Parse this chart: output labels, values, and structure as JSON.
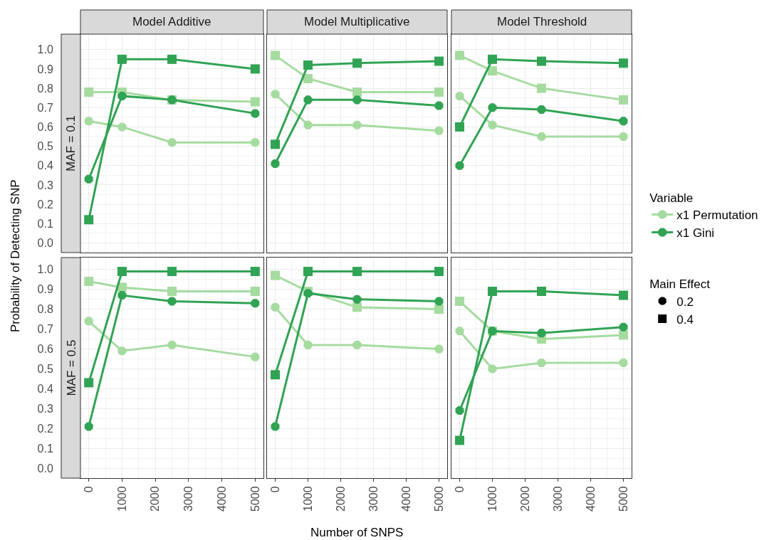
{
  "chart_data": [
    {
      "type": "line",
      "title": "Model Additive",
      "subtitle": "MAF = 0.1",
      "ylabel": "Probability of Detecting SNP",
      "legend": "right",
      "legend_title": "Variable",
      "annotations": [
        "Main Effect",
        "0.2",
        "0.4"
      ],
      "x": [
        0,
        1000,
        2500,
        5000
      ],
      "xlim": [
        -250,
        5250
      ],
      "xticks": [
        0,
        1000,
        2000,
        3000,
        4000,
        5000
      ],
      "ylim": [
        -0.05,
        1.08
      ],
      "yticks": [
        {
          "value": 0,
          "label": "0.0"
        },
        {
          "value": 0.1,
          "label": "0.1"
        },
        {
          "value": 0.2,
          "label": "0.2"
        },
        {
          "value": 0.3,
          "label": "0.3"
        },
        {
          "value": 0.4,
          "label": "0.4"
        },
        {
          "value": 0.5,
          "label": "0.5"
        },
        {
          "value": 0.6,
          "label": "0.6"
        },
        {
          "value": 0.7,
          "label": "0.7"
        },
        {
          "value": 0.8,
          "label": "0.8"
        },
        {
          "value": 0.9,
          "label": "0.9"
        },
        {
          "value": 1,
          "label": "1.0"
        }
      ],
      "grid": true,
      "tick_labels": "y",
      "series": [
        {
          "name": "x1 Permutation",
          "color": "#a6dba0",
          "marker": "circle",
          "values": [
            0.63,
            0.6,
            0.52,
            0.52
          ]
        },
        {
          "color": "#a6dba0",
          "marker": "square",
          "values": [
            0.78,
            0.78,
            0.74,
            0.73
          ]
        },
        {
          "name": "x1 Gini",
          "color": "#31a354",
          "marker": "circle",
          "values": [
            0.33,
            0.76,
            0.74,
            0.67
          ]
        },
        {
          "color": "#31a354",
          "marker": "square",
          "values": [
            0.12,
            0.95,
            0.95,
            0.9
          ]
        }
      ]
    },
    {
      "type": "line",
      "title": "Model Multiplicative",
      "x": [
        0,
        1000,
        2500,
        5000
      ],
      "xlim": [
        -250,
        5250
      ],
      "xticks": [
        0,
        1000,
        2000,
        3000,
        4000,
        5000
      ],
      "ylim": [
        -0.05,
        1.08
      ],
      "yticks": [
        {
          "value": 0,
          "label": null
        },
        {
          "value": 0.1,
          "label": null
        },
        {
          "value": 0.2,
          "label": null
        },
        {
          "value": 0.3,
          "label": null
        },
        {
          "value": 0.4,
          "label": null
        },
        {
          "value": 0.5,
          "label": null
        },
        {
          "value": 0.6,
          "label": null
        },
        {
          "value": 0.7,
          "label": null
        },
        {
          "value": 0.8,
          "label": null
        },
        {
          "value": 0.9,
          "label": null
        },
        {
          "value": 1,
          "label": null
        }
      ],
      "grid": true,
      "tick_labels": false,
      "series": [
        {
          "color": "#a6dba0",
          "marker": "circle",
          "values": [
            0.77,
            0.61,
            0.61,
            0.58
          ]
        },
        {
          "color": "#a6dba0",
          "marker": "square",
          "values": [
            0.97,
            0.85,
            0.78,
            0.78
          ]
        },
        {
          "color": "#31a354",
          "marker": "circle",
          "values": [
            0.41,
            0.74,
            0.74,
            0.71
          ]
        },
        {
          "color": "#31a354",
          "marker": "square",
          "values": [
            0.51,
            0.92,
            0.93,
            0.94
          ]
        }
      ]
    },
    {
      "type": "line",
      "title": "Model Threshold",
      "x": [
        0,
        1000,
        2500,
        5000
      ],
      "xlim": [
        -250,
        5250
      ],
      "xticks": [
        0,
        1000,
        2000,
        3000,
        4000,
        5000
      ],
      "ylim": [
        -0.05,
        1.08
      ],
      "yticks": [
        {
          "value": 0,
          "label": null
        },
        {
          "value": 0.1,
          "label": null
        },
        {
          "value": 0.2,
          "label": null
        },
        {
          "value": 0.3,
          "label": null
        },
        {
          "value": 0.4,
          "label": null
        },
        {
          "value": 0.5,
          "label": null
        },
        {
          "value": 0.6,
          "label": null
        },
        {
          "value": 0.7,
          "label": null
        },
        {
          "value": 0.8,
          "label": null
        },
        {
          "value": 0.9,
          "label": null
        },
        {
          "value": 1,
          "label": null
        }
      ],
      "grid": true,
      "tick_labels": false,
      "series": [
        {
          "color": "#a6dba0",
          "marker": "circle",
          "values": [
            0.76,
            0.61,
            0.55,
            0.55
          ]
        },
        {
          "color": "#a6dba0",
          "marker": "square",
          "values": [
            0.97,
            0.89,
            0.8,
            0.74
          ]
        },
        {
          "color": "#31a354",
          "marker": "circle",
          "values": [
            0.4,
            0.7,
            0.69,
            0.63
          ]
        },
        {
          "color": "#31a354",
          "marker": "square",
          "values": [
            0.6,
            0.95,
            0.94,
            0.93
          ]
        }
      ]
    },
    {
      "type": "line",
      "subtitle": "MAF = 0.5",
      "x": [
        0,
        1000,
        2500,
        5000
      ],
      "xlim": [
        -250,
        5250
      ],
      "xticks": [
        0,
        1000,
        2000,
        3000,
        4000,
        5000
      ],
      "ylim": [
        -0.05,
        1.06
      ],
      "yticks": [
        {
          "value": 0,
          "label": "0.0"
        },
        {
          "value": 0.1,
          "label": "0.1"
        },
        {
          "value": 0.2,
          "label": "0.2"
        },
        {
          "value": 0.3,
          "label": "0.3"
        },
        {
          "value": 0.4,
          "label": "0.4"
        },
        {
          "value": 0.5,
          "label": "0.5"
        },
        {
          "value": 0.6,
          "label": "0.6"
        },
        {
          "value": 0.7,
          "label": "0.7"
        },
        {
          "value": 0.8,
          "label": "0.8"
        },
        {
          "value": 0.9,
          "label": "0.9"
        },
        {
          "value": 1,
          "label": "1.0"
        }
      ],
      "grid": true,
      "series": [
        {
          "color": "#a6dba0",
          "marker": "circle",
          "values": [
            0.74,
            0.59,
            0.62,
            0.56
          ]
        },
        {
          "color": "#a6dba0",
          "marker": "square",
          "values": [
            0.94,
            0.91,
            0.89,
            0.89
          ]
        },
        {
          "color": "#31a354",
          "marker": "circle",
          "values": [
            0.21,
            0.87,
            0.84,
            0.83
          ]
        },
        {
          "color": "#31a354",
          "marker": "square",
          "values": [
            0.43,
            0.99,
            0.99,
            0.99
          ]
        }
      ]
    },
    {
      "type": "line",
      "xlabel": "Number of SNPS",
      "x": [
        0,
        1000,
        2500,
        5000
      ],
      "xlim": [
        -250,
        5250
      ],
      "xticks": [
        0,
        1000,
        2000,
        3000,
        4000,
        5000
      ],
      "ylim": [
        -0.05,
        1.06
      ],
      "yticks": [
        {
          "value": 0,
          "label": null
        },
        {
          "value": 0.1,
          "label": null
        },
        {
          "value": 0.2,
          "label": null
        },
        {
          "value": 0.3,
          "label": null
        },
        {
          "value": 0.4,
          "label": null
        },
        {
          "value": 0.5,
          "label": null
        },
        {
          "value": 0.6,
          "label": null
        },
        {
          "value": 0.7,
          "label": null
        },
        {
          "value": 0.8,
          "label": null
        },
        {
          "value": 0.9,
          "label": null
        },
        {
          "value": 1,
          "label": null
        }
      ],
      "grid": true,
      "tick_labels": "x",
      "series": [
        {
          "color": "#a6dba0",
          "marker": "circle",
          "values": [
            0.81,
            0.62,
            0.62,
            0.6
          ]
        },
        {
          "color": "#a6dba0",
          "marker": "square",
          "values": [
            0.97,
            0.89,
            0.81,
            0.8
          ]
        },
        {
          "color": "#31a354",
          "marker": "circle",
          "values": [
            0.21,
            0.88,
            0.85,
            0.84
          ]
        },
        {
          "color": "#31a354",
          "marker": "square",
          "values": [
            0.47,
            0.99,
            0.99,
            0.99
          ]
        }
      ]
    },
    {
      "type": "line",
      "x": [
        0,
        1000,
        2500,
        5000
      ],
      "xlim": [
        -250,
        5250
      ],
      "xticks": [
        0,
        1000,
        2000,
        3000,
        4000,
        5000
      ],
      "ylim": [
        -0.05,
        1.06
      ],
      "yticks": [
        {
          "value": 0,
          "label": null
        },
        {
          "value": 0.1,
          "label": null
        },
        {
          "value": 0.2,
          "label": null
        },
        {
          "value": 0.3,
          "label": null
        },
        {
          "value": 0.4,
          "label": null
        },
        {
          "value": 0.5,
          "label": null
        },
        {
          "value": 0.6,
          "label": null
        },
        {
          "value": 0.7,
          "label": null
        },
        {
          "value": 0.8,
          "label": null
        },
        {
          "value": 0.9,
          "label": null
        },
        {
          "value": 1,
          "label": null
        }
      ],
      "grid": true,
      "tick_labels": "x",
      "series": [
        {
          "color": "#a6dba0",
          "marker": "circle",
          "values": [
            0.69,
            0.5,
            0.53,
            0.53
          ]
        },
        {
          "color": "#a6dba0",
          "marker": "square",
          "values": [
            0.84,
            0.69,
            0.65,
            0.67
          ]
        },
        {
          "color": "#31a354",
          "marker": "circle",
          "values": [
            0.29,
            0.69,
            0.68,
            0.71
          ]
        },
        {
          "color": "#31a354",
          "marker": "square",
          "values": [
            0.14,
            0.89,
            0.89,
            0.87
          ]
        }
      ]
    }
  ]
}
